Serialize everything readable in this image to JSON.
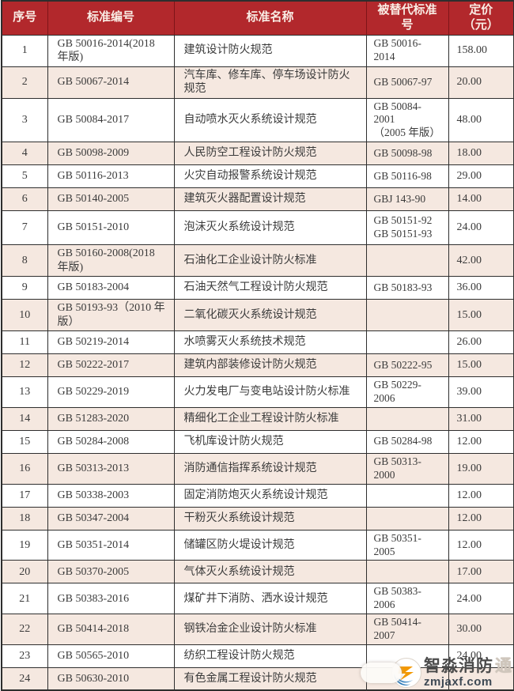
{
  "table": {
    "columns": [
      {
        "label": "序号"
      },
      {
        "label": "标准编号"
      },
      {
        "label": "标准名称"
      },
      {
        "label": "被替代标准号"
      },
      {
        "label": "定价（元）"
      }
    ],
    "rows": [
      {
        "no": "1",
        "code": "GB 50016-2014(2018 年版)",
        "name": "建筑设计防火规范",
        "replaced": "GB 50016-2014",
        "price": "158.00",
        "tall": false
      },
      {
        "no": "2",
        "code": "GB 50067-2014",
        "name": "汽车库、修车库、停车场设计防火规范",
        "replaced": "GB 50067-97",
        "price": "20.00",
        "tall": false
      },
      {
        "no": "3",
        "code": "GB 50084-2017",
        "name": "自动喷水灭火系统设计规范",
        "replaced": "GB 50084-2001\n（2005 年版）",
        "price": "48.00",
        "tall": true
      },
      {
        "no": "4",
        "code": "GB 50098-2009",
        "name": "人民防空工程设计防火规范",
        "replaced": "GB 50098-98",
        "price": "18.00",
        "tall": false
      },
      {
        "no": "5",
        "code": "GB 50116-2013",
        "name": "火灾自动报警系统设计规范",
        "replaced": "GB 50116-98",
        "price": "29.00",
        "tall": false
      },
      {
        "no": "6",
        "code": "GB 50140-2005",
        "name": "建筑灭火器配置设计规范",
        "replaced": "GBJ 143-90",
        "price": "14.00",
        "tall": false
      },
      {
        "no": "7",
        "code": "GB 50151-2010",
        "name": "泡沫灭火系统设计规范",
        "replaced": "GB 50151-92\nGB 50151-93",
        "price": "24.00",
        "tall": true
      },
      {
        "no": "8",
        "code": "GB 50160-2008(2018 年版)",
        "name": "石油化工企业设计防火标准",
        "replaced": "",
        "price": "42.00",
        "tall": false
      },
      {
        "no": "9",
        "code": "GB 50183-2004",
        "name": "石油天然气工程设计防火规范",
        "replaced": "GB 50183-93",
        "price": "36.00",
        "tall": false
      },
      {
        "no": "10",
        "code": "GB 50193-93（2010 年版）",
        "name": "二氧化碳灭火系统设计规范",
        "replaced": "",
        "price": "15.00",
        "tall": false
      },
      {
        "no": "11",
        "code": "GB 50219-2014",
        "name": "水喷雾灭火系统技术规范",
        "replaced": "",
        "price": "26.00",
        "tall": false
      },
      {
        "no": "12",
        "code": "GB 50222-2017",
        "name": "建筑内部装修设计防火规范",
        "replaced": "GB 50222-95",
        "price": "15.00",
        "tall": false
      },
      {
        "no": "13",
        "code": "GB 50229-2019",
        "name": "火力发电厂与变电站设计防火标准",
        "replaced": "GB 50229-2006",
        "price": "39.00",
        "tall": false
      },
      {
        "no": "14",
        "code": "GB 51283-2020",
        "name": "精细化工企业工程设计防火标准",
        "replaced": "",
        "price": "31.00",
        "tall": false
      },
      {
        "no": "15",
        "code": "GB 50284-2008",
        "name": "飞机库设计防火规范",
        "replaced": "GB 50284-98",
        "price": "12.00",
        "tall": false
      },
      {
        "no": "16",
        "code": "GB 50313-2013",
        "name": "消防通信指挥系统设计规范",
        "replaced": "GB 50313-2000",
        "price": "19.00",
        "tall": false
      },
      {
        "no": "17",
        "code": "GB 50338-2003",
        "name": "固定消防炮灭火系统设计规范",
        "replaced": "",
        "price": "12.00",
        "tall": false
      },
      {
        "no": "18",
        "code": "GB 50347-2004",
        "name": "干粉灭火系统设计规范",
        "replaced": "",
        "price": "12.00",
        "tall": false
      },
      {
        "no": "19",
        "code": "GB 50351-2014",
        "name": "储罐区防火堤设计规范",
        "replaced": "GB 50351-2005",
        "price": "12.00",
        "tall": false
      },
      {
        "no": "20",
        "code": "GB 50370-2005",
        "name": "气体灭火系统设计规范",
        "replaced": "",
        "price": "17.00",
        "tall": false
      },
      {
        "no": "21",
        "code": "GB 50383-2016",
        "name": "煤矿井下消防、洒水设计规范",
        "replaced": "GB 50383-2006",
        "price": "24.00",
        "tall": false
      },
      {
        "no": "22",
        "code": "GB 50414-2018",
        "name": "钢铁冶金企业设计防火标准",
        "replaced": "GB 50414-2007",
        "price": "30.00",
        "tall": false
      },
      {
        "no": "23",
        "code": "GB 50565-2010",
        "name": "纺织工程设计防火规范",
        "replaced": "",
        "price": "24.00",
        "tall": false
      },
      {
        "no": "24",
        "code": "GB 50630-2010",
        "name": "有色金属工程设计防火规范",
        "replaced": "",
        "price": "",
        "tall": false
      }
    ]
  },
  "watermark": {
    "brand": "智淼消防",
    "suffix": "通",
    "domain": "zmjaxf.com"
  },
  "colors": {
    "header_bg": "#b2282c",
    "header_text": "#f9ede5",
    "row_alt_bg": "#f5e8e0",
    "border": "#2e2e2e",
    "logo_blue": "#2878b8",
    "logo_orange": "#f39800"
  }
}
